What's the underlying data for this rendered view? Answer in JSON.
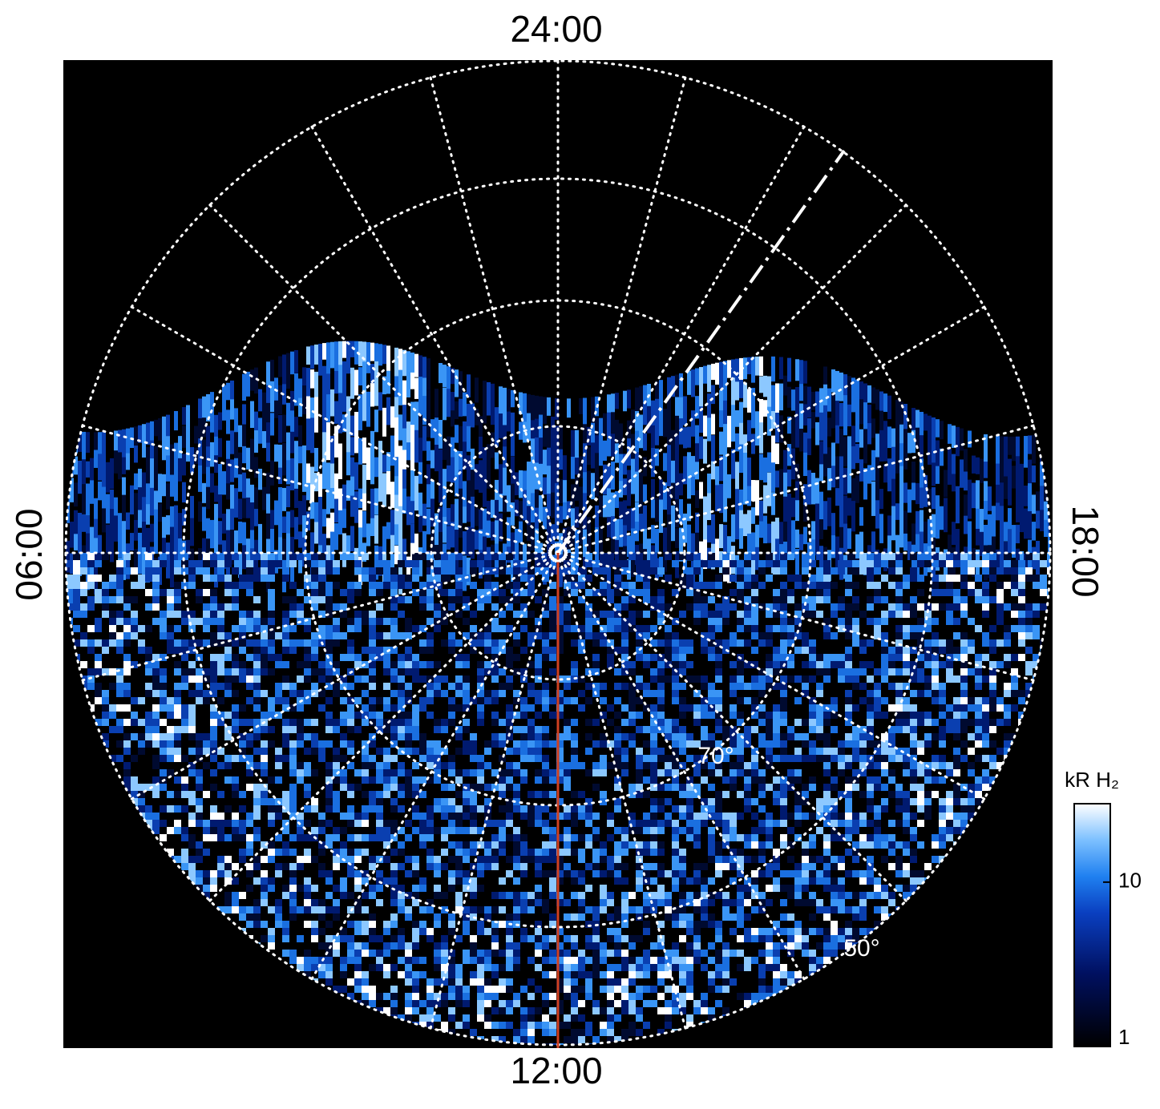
{
  "chart_data": {
    "type": "polar-image",
    "local_time_labels": {
      "top": "24:00",
      "left": "06:00",
      "right": "18:00",
      "bottom": "12:00"
    },
    "latitude_labels": [
      "70°",
      "50°"
    ],
    "colorbar": {
      "label": "kR H₂",
      "ylim": [
        1,
        30
      ],
      "yticks": [
        1,
        10
      ],
      "log": true
    }
  }
}
